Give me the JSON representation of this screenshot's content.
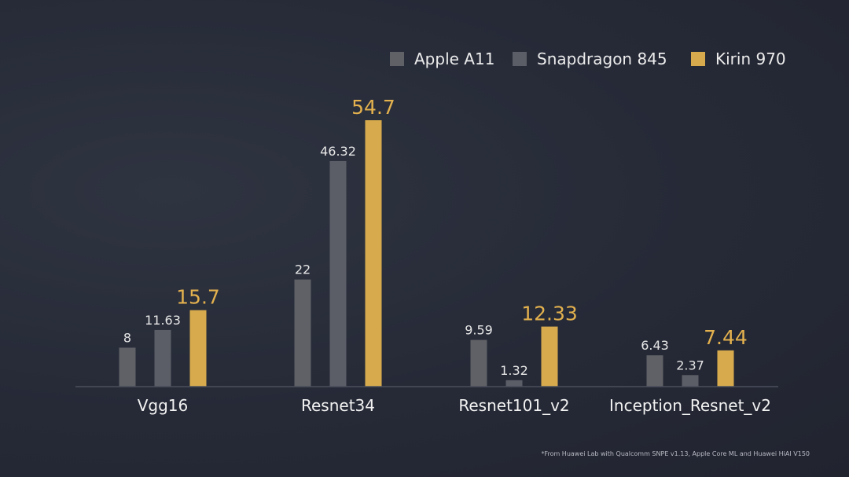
{
  "chart_data": {
    "type": "bar",
    "categories": [
      "Vgg16",
      "Resnet34",
      "Resnet101_v2",
      "Inception_Resnet_v2"
    ],
    "series": [
      {
        "name": "Apple A11",
        "color": "#5f6166",
        "label_color": "#e6e6e6",
        "values": [
          8,
          22,
          9.59,
          6.43
        ],
        "labels": [
          "8",
          "22",
          "9.59",
          "6.43"
        ]
      },
      {
        "name": "Snapdragon 845",
        "color": "#5b5e66",
        "label_color": "#e6e6e6",
        "values": [
          11.63,
          46.32,
          1.32,
          2.37
        ],
        "labels": [
          "11.63",
          "46.32",
          "1.32",
          "2.37"
        ]
      },
      {
        "name": "Kirin 970",
        "color": "#d7ab4d",
        "label_color": "#e3b14e",
        "values": [
          15.7,
          54.7,
          12.33,
          7.44
        ],
        "labels": [
          "15.7",
          "54.7",
          "12.33",
          "7.44"
        ]
      }
    ],
    "ylim": [
      0,
      54.7
    ],
    "title": "",
    "xlabel": "",
    "ylabel": "",
    "legend_position": "top-right",
    "grid": false
  },
  "footnote": "*From Huawei Lab with Qualcomm SNPE v1.13, Apple Core ML and Huawei HiAI V150"
}
